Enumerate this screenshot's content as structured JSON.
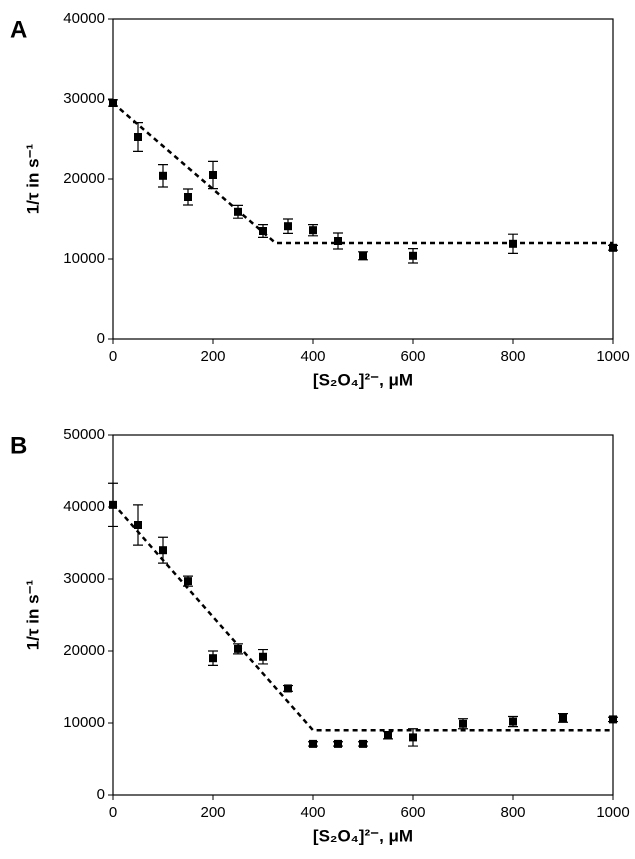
{
  "chart_data": [
    {
      "type": "scatter",
      "panel_label": "A",
      "y_label": "1/τ in s⁻¹",
      "x_label": "[S₂O₄]²⁻, μM",
      "xlim": [
        0,
        1000
      ],
      "xticks": [
        0,
        200,
        400,
        600,
        800,
        1000
      ],
      "ylim": [
        0,
        40000
      ],
      "yticks": [
        0,
        10000,
        20000,
        30000,
        40000
      ],
      "series": [
        {
          "color": "#000000",
          "marker": "square",
          "x": [
            0,
            50,
            100,
            150,
            200,
            250,
            300,
            350,
            400,
            450,
            500,
            600,
            800,
            1000
          ],
          "values": [
            29500,
            25250,
            20400,
            17750,
            20500,
            15900,
            13500,
            14100,
            13600,
            12250,
            10400,
            10400,
            11900,
            11400
          ],
          "errors": [
            400,
            1800,
            1400,
            1000,
            1700,
            800,
            800,
            900,
            700,
            1000,
            500,
            900,
            1200,
            300
          ]
        },
        {
          "color": "#000000",
          "dashed": true,
          "x": [
            0,
            325,
            1000
          ],
          "values": [
            29500,
            12000,
            12000
          ]
        }
      ]
    },
    {
      "type": "scatter",
      "panel_label": "B",
      "y_label": "1/τ in s⁻¹",
      "x_label": "[S₂O₄]²⁻, μM",
      "xlim": [
        0,
        1000
      ],
      "xticks": [
        0,
        200,
        400,
        600,
        800,
        1000
      ],
      "ylim": [
        0,
        50000
      ],
      "yticks": [
        0,
        10000,
        20000,
        30000,
        40000,
        50000
      ],
      "series": [
        {
          "color": "#000000",
          "marker": "square",
          "x": [
            0,
            50,
            100,
            150,
            200,
            250,
            300,
            350,
            400,
            450,
            500,
            550,
            600,
            700,
            800,
            900,
            1000
          ],
          "values": [
            40300,
            37500,
            34000,
            29700,
            19000,
            20300,
            19200,
            14800,
            7100,
            7100,
            7100,
            8300,
            8000,
            9900,
            10200,
            10700,
            10500
          ],
          "errors": [
            3000,
            2800,
            1800,
            700,
            1000,
            700,
            1000,
            400,
            300,
            300,
            300,
            500,
            1200,
            700,
            700,
            600,
            300
          ]
        },
        {
          "color": "#000000",
          "dashed": true,
          "x": [
            0,
            400,
            1000
          ],
          "values": [
            40500,
            9000,
            9000
          ]
        }
      ]
    }
  ]
}
